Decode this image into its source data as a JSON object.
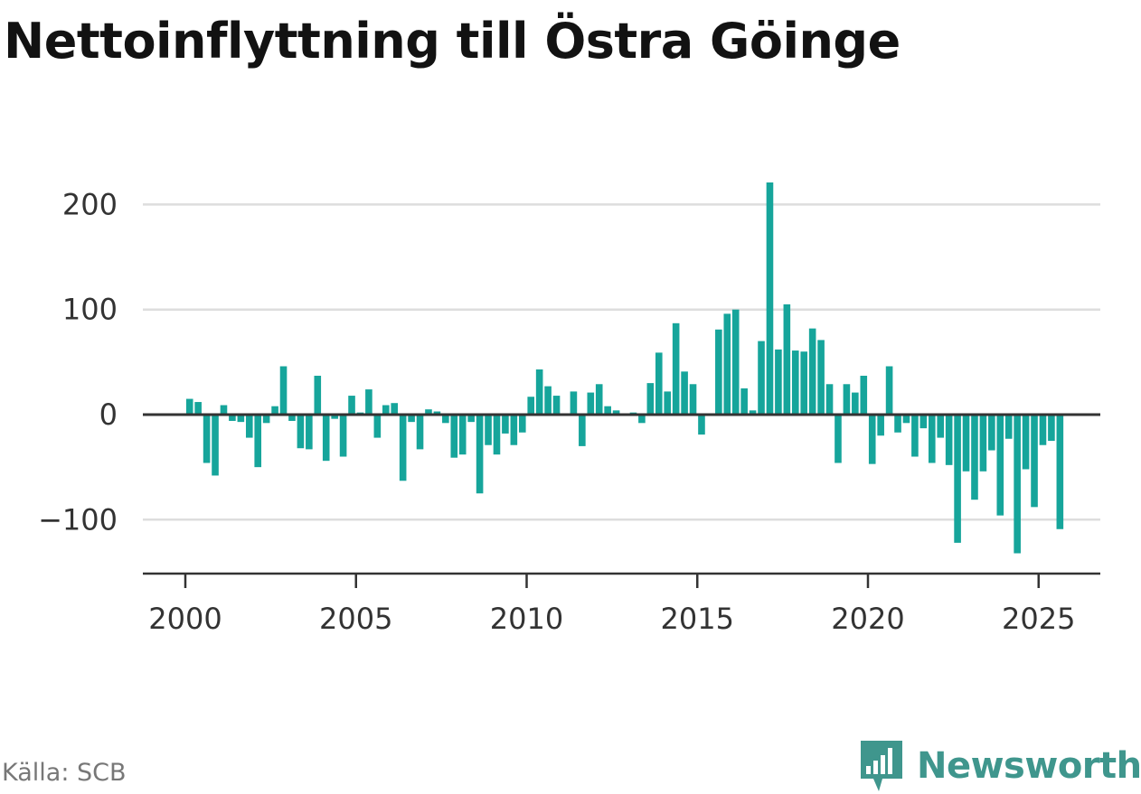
{
  "title": "Nettoinflyttning till Östra Göinge",
  "source": "Källa: SCB",
  "brand": {
    "name": "Newsworthy",
    "color": "#3f968d",
    "icon": "bar-chart-speech-bubble-icon"
  },
  "colors": {
    "bar": "#16a59b",
    "grid": "#dddddd",
    "axis": "#333333"
  },
  "chart_data": {
    "type": "bar",
    "ylim": [
      -150,
      230
    ],
    "xlim": [
      1999.5,
      2026.5
    ],
    "yticks": [
      {
        "value": 200,
        "label": "200"
      },
      {
        "value": 100,
        "label": "100"
      },
      {
        "value": 0,
        "label": "0"
      },
      {
        "value": -100,
        "label": "−100"
      }
    ],
    "xticks": [
      {
        "value": 2000,
        "label": "2000"
      },
      {
        "value": 2005,
        "label": "2005"
      },
      {
        "value": 2010,
        "label": "2010"
      },
      {
        "value": 2015,
        "label": "2015"
      },
      {
        "value": 2020,
        "label": "2020"
      },
      {
        "value": 2025,
        "label": "2025"
      }
    ],
    "grid": true,
    "period": "quarter",
    "start": "2000-Q1",
    "values": [
      15,
      12,
      -46,
      -58,
      9,
      -6,
      -7,
      -22,
      -50,
      -8,
      8,
      46,
      -6,
      -32,
      -33,
      37,
      -44,
      -4,
      -40,
      18,
      2,
      24,
      -22,
      9,
      11,
      -63,
      -7,
      -33,
      5,
      3,
      -8,
      -41,
      -38,
      -7,
      -75,
      -29,
      -38,
      -18,
      -29,
      -17,
      17,
      43,
      27,
      18,
      0,
      22,
      -30,
      21,
      29,
      8,
      4,
      0,
      2,
      -8,
      30,
      59,
      22,
      87,
      41,
      29,
      -19,
      0,
      81,
      96,
      100,
      25,
      4,
      70,
      221,
      62,
      105,
      61,
      60,
      82,
      71,
      29,
      -46,
      29,
      21,
      37,
      -47,
      -20,
      46,
      -17,
      -8,
      -40,
      -13,
      -46,
      -22,
      -48,
      -122,
      -54,
      -81,
      -54,
      -34,
      -96,
      -23,
      -132,
      -52,
      -88,
      -29,
      -25,
      -109
    ]
  }
}
